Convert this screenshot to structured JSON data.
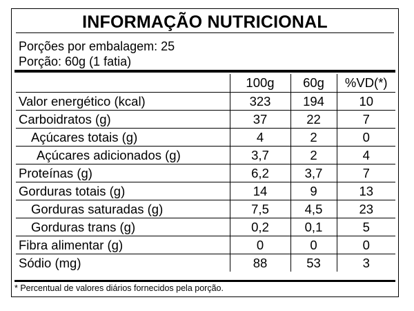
{
  "title": "INFORMAÇÃO NUTRICIONAL",
  "servings_per_package": "Porções por embalagem: 25",
  "serving_size": "Porção: 60g (1 fatia)",
  "columns": [
    "",
    "100g",
    "60g",
    "%VD(*)"
  ],
  "rows": [
    {
      "label": "Valor energético (kcal)",
      "v100": "323",
      "v60": "194",
      "vd": "10"
    },
    {
      "label": "Carboidratos (g)",
      "v100": "37",
      "v60": "22",
      "vd": "7"
    },
    {
      "label": "Açúcares totais (g)",
      "v100": "4",
      "v60": "2",
      "vd": "0"
    },
    {
      "label": "Açúcares adicionados (g)",
      "v100": "3,7",
      "v60": "2",
      "vd": "4"
    },
    {
      "label": "Proteínas (g)",
      "v100": "6,2",
      "v60": "3,7",
      "vd": "7"
    },
    {
      "label": "Gorduras totais (g)",
      "v100": "14",
      "v60": "9",
      "vd": "13"
    },
    {
      "label": "Gorduras saturadas (g)",
      "v100": "7,5",
      "v60": "4,5",
      "vd": "23"
    },
    {
      "label": "Gorduras trans (g)",
      "v100": "0,2",
      "v60": "0,1",
      "vd": "5"
    },
    {
      "label": "Fibra alimentar (g)",
      "v100": "0",
      "v60": "0",
      "vd": "0"
    },
    {
      "label": "Sódio (mg)",
      "v100": "88",
      "v60": "53",
      "vd": "3"
    }
  ],
  "footnote": "* Percentual de valores diários fornecidos pela porção."
}
